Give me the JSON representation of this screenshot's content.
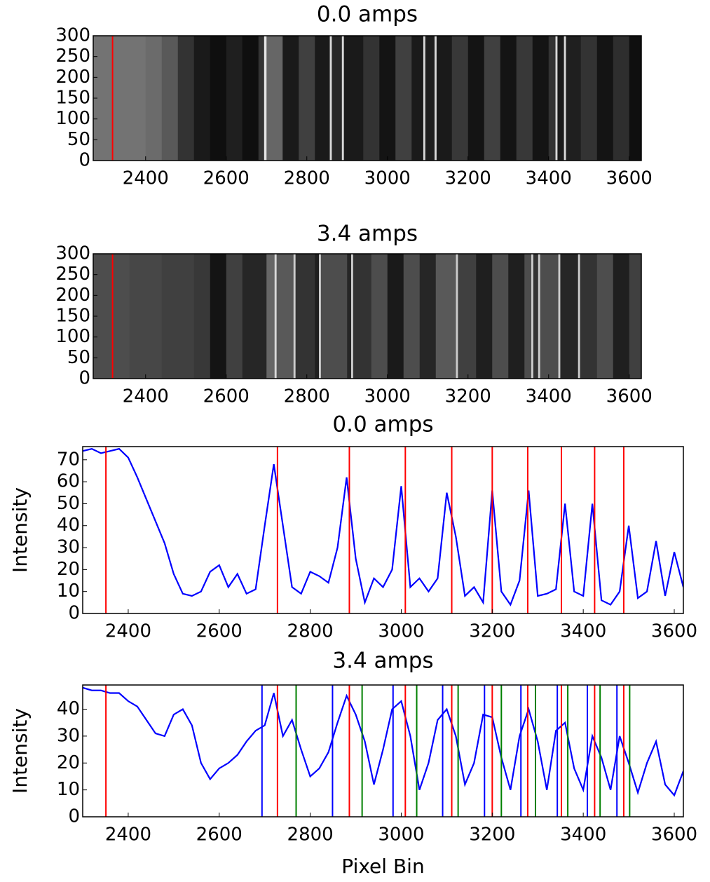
{
  "chart_data": [
    {
      "type": "image",
      "title": "0.0 amps",
      "colormap": "gray",
      "x": [
        2270,
        2400,
        2440,
        2480,
        2520,
        2560,
        2600,
        2640,
        2680,
        2694,
        2700,
        2740,
        2780,
        2820,
        2857,
        2862,
        2887,
        2892,
        2940,
        2980,
        3020,
        3060,
        3089,
        3094,
        3117,
        3122,
        3160,
        3200,
        3240,
        3280,
        3320,
        3360,
        3400,
        3417,
        3422,
        3438,
        3443,
        3480,
        3520,
        3560,
        3600
      ],
      "values": [
        45,
        42,
        35,
        20,
        10,
        6,
        12,
        6,
        20,
        90,
        40,
        10,
        25,
        10,
        85,
        15,
        85,
        10,
        20,
        8,
        25,
        10,
        85,
        12,
        85,
        10,
        22,
        8,
        25,
        8,
        22,
        8,
        20,
        85,
        10,
        85,
        12,
        20,
        8,
        18,
        6
      ],
      "xlim": [
        2270,
        3630
      ],
      "ylim": [
        0,
        300
      ],
      "xticks": [
        2400,
        2600,
        2800,
        3000,
        3200,
        3400,
        3600
      ],
      "yticks": [
        0,
        50,
        100,
        150,
        200,
        250,
        300
      ],
      "vlines": [
        {
          "color": "#ff0000",
          "x": [
            2318
          ]
        }
      ]
    },
    {
      "type": "image",
      "title": "3.4 amps",
      "colormap": "gray",
      "x": [
        2270,
        2360,
        2440,
        2520,
        2560,
        2600,
        2640,
        2700,
        2720,
        2725,
        2767,
        2772,
        2820,
        2830,
        2835,
        2900,
        2910,
        2915,
        2960,
        3000,
        3040,
        3080,
        3120,
        3170,
        3175,
        3220,
        3260,
        3300,
        3340,
        3357,
        3362,
        3374,
        3379,
        3424,
        3429,
        3473,
        3478,
        3520,
        3560,
        3600
      ],
      "values": [
        30,
        28,
        25,
        22,
        8,
        25,
        15,
        40,
        85,
        35,
        80,
        20,
        12,
        80,
        30,
        15,
        80,
        20,
        30,
        10,
        30,
        15,
        35,
        80,
        25,
        12,
        30,
        12,
        30,
        80,
        20,
        80,
        30,
        80,
        15,
        80,
        20,
        30,
        12,
        25
      ],
      "xlim": [
        2270,
        3630
      ],
      "ylim": [
        0,
        300
      ],
      "xticks": [
        2400,
        2600,
        2800,
        3000,
        3200,
        3400,
        3600
      ],
      "yticks": [
        0,
        50,
        100,
        150,
        200,
        250,
        300
      ],
      "vlines": [
        {
          "color": "#ff0000",
          "x": [
            2318
          ]
        }
      ]
    },
    {
      "type": "line",
      "title": "0.0 amps",
      "ylabel": "Intensity",
      "x": [
        2300,
        2320,
        2340,
        2360,
        2380,
        2400,
        2420,
        2440,
        2460,
        2480,
        2500,
        2520,
        2540,
        2560,
        2580,
        2600,
        2620,
        2640,
        2660,
        2680,
        2700,
        2720,
        2740,
        2760,
        2780,
        2800,
        2820,
        2840,
        2860,
        2880,
        2900,
        2920,
        2940,
        2960,
        2980,
        3000,
        3020,
        3040,
        3060,
        3080,
        3100,
        3120,
        3140,
        3160,
        3180,
        3200,
        3220,
        3240,
        3260,
        3280,
        3300,
        3320,
        3340,
        3360,
        3380,
        3400,
        3420,
        3440,
        3460,
        3480,
        3500,
        3520,
        3540,
        3560,
        3580,
        3600,
        3620
      ],
      "series": [
        {
          "color": "#0000ff",
          "values": [
            74,
            75,
            73,
            74,
            75,
            71,
            62,
            52,
            42,
            32,
            18,
            9,
            8,
            10,
            19,
            22,
            12,
            18,
            9,
            11,
            40,
            68,
            40,
            12,
            9,
            19,
            17,
            14,
            30,
            62,
            25,
            5,
            16,
            12,
            20,
            58,
            12,
            16,
            10,
            16,
            55,
            35,
            8,
            12,
            5,
            56,
            10,
            4,
            15,
            56,
            8,
            9,
            11,
            50,
            10,
            8,
            50,
            6,
            4,
            10,
            40,
            7,
            10,
            33,
            8,
            28,
            12
          ]
        }
      ],
      "xlim": [
        2300,
        3620
      ],
      "ylim": [
        0,
        76
      ],
      "xticks": [
        2400,
        2600,
        2800,
        3000,
        3200,
        3400,
        3600
      ],
      "yticks": [
        0,
        10,
        20,
        30,
        40,
        50,
        60,
        70
      ],
      "vlines": [
        {
          "color": "#ff0000",
          "x": [
            2351,
            2728,
            2886,
            3009,
            3111,
            3200,
            3278,
            3352,
            3425,
            3489
          ]
        }
      ]
    },
    {
      "type": "line",
      "title": "3.4 amps",
      "ylabel": "Intensity",
      "xlabel": "Pixel Bin",
      "x": [
        2300,
        2320,
        2340,
        2360,
        2380,
        2400,
        2420,
        2440,
        2460,
        2480,
        2500,
        2520,
        2540,
        2560,
        2580,
        2600,
        2620,
        2640,
        2660,
        2680,
        2700,
        2720,
        2740,
        2760,
        2780,
        2800,
        2820,
        2840,
        2860,
        2880,
        2900,
        2920,
        2940,
        2960,
        2980,
        3000,
        3020,
        3040,
        3060,
        3080,
        3100,
        3120,
        3140,
        3160,
        3180,
        3200,
        3220,
        3240,
        3260,
        3280,
        3300,
        3320,
        3340,
        3360,
        3380,
        3400,
        3420,
        3440,
        3460,
        3480,
        3500,
        3520,
        3540,
        3560,
        3580,
        3600,
        3620
      ],
      "series": [
        {
          "color": "#0000ff",
          "values": [
            48,
            47,
            47,
            46,
            46,
            43,
            41,
            36,
            31,
            30,
            38,
            40,
            34,
            20,
            14,
            18,
            20,
            23,
            28,
            32,
            34,
            46,
            30,
            36,
            25,
            15,
            18,
            24,
            35,
            45,
            38,
            28,
            12,
            25,
            40,
            43,
            30,
            10,
            20,
            36,
            40,
            30,
            12,
            20,
            38,
            37,
            22,
            10,
            30,
            40,
            28,
            10,
            32,
            35,
            18,
            10,
            30,
            22,
            10,
            30,
            20,
            9,
            20,
            28,
            12,
            8,
            17
          ]
        }
      ],
      "xlim": [
        2300,
        3620
      ],
      "ylim": [
        0,
        49
      ],
      "xticks": [
        2400,
        2600,
        2800,
        3000,
        3200,
        3400,
        3600
      ],
      "yticks": [
        0,
        10,
        20,
        30,
        40
      ],
      "vlines": [
        {
          "color": "#ff0000",
          "x": [
            2351,
            2728,
            2886,
            3009,
            3111,
            3200,
            3278,
            3352,
            3425,
            3489
          ]
        },
        {
          "color": "#0000ff",
          "x": [
            2694,
            2849,
            2982,
            3091,
            3183,
            3263,
            3343,
            3409,
            3474
          ]
        },
        {
          "color": "#008000",
          "x": [
            2769,
            2914,
            3034,
            3125,
            3220,
            3295,
            3366,
            3437,
            3502
          ]
        }
      ]
    }
  ]
}
